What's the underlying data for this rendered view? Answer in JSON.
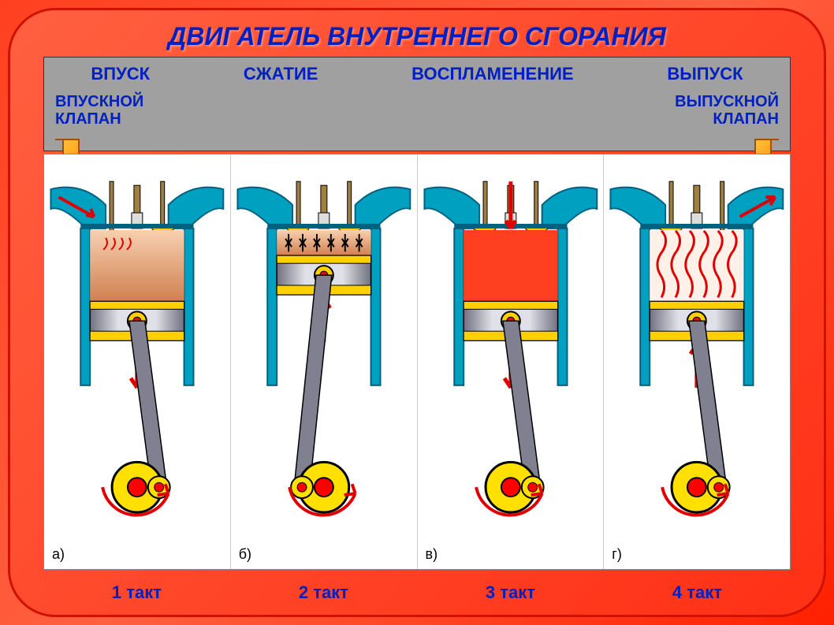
{
  "title": "ДВИГАТЕЛЬ ВНУТРЕННЕГО СГОРАНИЯ",
  "stages": [
    {
      "name": "ВПУСК",
      "takt": "1 такт",
      "panel": "а)"
    },
    {
      "name": "СЖАТИЕ",
      "takt": "2  такт",
      "panel": "б)"
    },
    {
      "name": "ВОСПЛАМЕНЕНИЕ",
      "takt": "3 такт",
      "panel": "в)"
    },
    {
      "name": "ВЫПУСК",
      "takt": "4  такт",
      "panel": "г)"
    }
  ],
  "valve_labels": {
    "intake": "ВПУСКНОЙ\nКЛАПАН",
    "exhaust": "ВЫПУСКНОЙ\nКЛАПАН"
  },
  "colors": {
    "bg_red": "#ff3015",
    "title_blue": "#0020c0",
    "header_gray": "#a0a0a0",
    "cylinder_wall": "#00a0c0",
    "cylinder_wall_dark": "#006080",
    "piston_yellow": "#ffd000",
    "piston_body": "#c0c0d0",
    "rod_gray": "#808090",
    "crank_yellow": "#ffe000",
    "crank_red": "#ff0000",
    "mixture_top": "#f8d0b0",
    "mixture_bottom": "#d08050",
    "combustion": "#ff4020",
    "arrow_red": "#e00000",
    "arrow_orange": "#ff9000",
    "spark_plug": "#a08040"
  },
  "diagram": {
    "cylinder_width": 120,
    "cylinder_height": 200,
    "piston_positions": [
      0.6,
      0.15,
      0.6,
      0.6
    ],
    "crank_angles": [
      90,
      270,
      90,
      90
    ],
    "intake_valve_open": [
      true,
      false,
      false,
      false
    ],
    "exhaust_valve_open": [
      false,
      false,
      false,
      true
    ],
    "combustion_shown": [
      false,
      false,
      true,
      false
    ],
    "exhaust_swirls": [
      false,
      false,
      false,
      true
    ],
    "compression_arrows": [
      false,
      true,
      false,
      false
    ],
    "intake_flow": [
      true,
      false,
      false,
      false
    ],
    "exhaust_flow": [
      false,
      false,
      false,
      true
    ]
  }
}
